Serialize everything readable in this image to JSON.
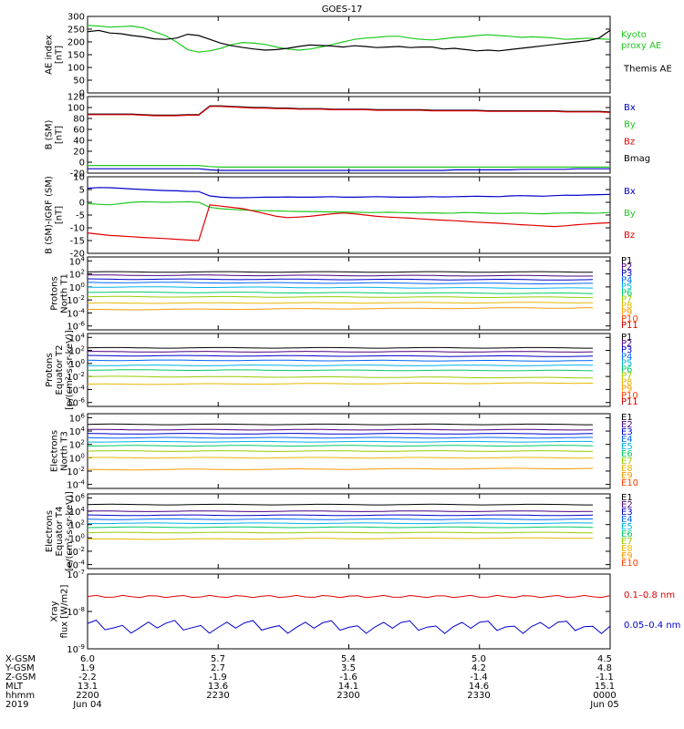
{
  "title": "GOES-17",
  "colors": {
    "black": "#000000",
    "red": "#e00000",
    "green": "#1fc81f",
    "blue": "#0000cc",
    "P1": "#000000",
    "P2": "#4b0082",
    "P3": "#0000cc",
    "P4": "#0066ff",
    "P5": "#00b3e6",
    "P6": "#00cc66",
    "P7": "#99cc00",
    "P8": "#e6b800",
    "P9": "#ff9900",
    "P10": "#ff4000",
    "P11": "#cc0000"
  },
  "chart_data": [
    {
      "type": "line",
      "ylabel": "AE index [nT]",
      "ylim": [
        0,
        300
      ],
      "yticks": [
        "0",
        "50",
        "100",
        "150",
        "200",
        "250",
        "300"
      ],
      "legend": [
        {
          "label": "Kyoto proxy AE",
          "color": "#1fc81f"
        },
        {
          "label": "Themis AE",
          "color": "#000000"
        }
      ],
      "series": [
        {
          "name": "Kyoto proxy AE",
          "color": "#1fc81f",
          "values": [
            265,
            262,
            258,
            260,
            262,
            255,
            240,
            225,
            200,
            170,
            160,
            165,
            175,
            190,
            198,
            195,
            190,
            180,
            172,
            168,
            172,
            180,
            190,
            200,
            210,
            215,
            218,
            222,
            222,
            215,
            210,
            208,
            212,
            218,
            220,
            225,
            228,
            225,
            222,
            218,
            220,
            218,
            215,
            210,
            212,
            215,
            212,
            210
          ]
        },
        {
          "name": "Themis AE",
          "color": "#000000",
          "values": [
            240,
            245,
            235,
            232,
            225,
            220,
            212,
            210,
            215,
            230,
            225,
            210,
            195,
            185,
            178,
            172,
            168,
            170,
            175,
            182,
            188,
            186,
            184,
            180,
            185,
            182,
            178,
            180,
            182,
            178,
            180,
            180,
            172,
            175,
            170,
            165,
            168,
            165,
            170,
            175,
            180,
            185,
            190,
            195,
            200,
            205,
            215,
            245
          ]
        }
      ]
    },
    {
      "type": "line",
      "ylabel": "B (SM) [nT]",
      "ylim": [
        -20,
        120
      ],
      "yticks": [
        "-20",
        "0",
        "20",
        "40",
        "60",
        "80",
        "100",
        "120"
      ],
      "legend": [
        {
          "label": "Bx",
          "color": "#0000cc"
        },
        {
          "label": "By",
          "color": "#1fc81f"
        },
        {
          "label": "Bz",
          "color": "#e00000"
        },
        {
          "label": "Bmag",
          "color": "#000000"
        }
      ],
      "series": [
        {
          "name": "Bmag",
          "color": "#000000",
          "values": [
            88,
            88,
            88,
            88,
            88,
            87,
            86,
            86,
            86,
            87,
            87,
            103,
            103,
            102,
            101,
            100,
            100,
            99,
            99,
            98,
            98,
            98,
            97,
            97,
            97,
            97,
            96,
            96,
            96,
            96,
            96,
            95,
            95,
            95,
            95,
            95,
            94,
            94,
            94,
            94,
            94,
            94,
            94,
            93,
            93,
            93,
            93,
            92
          ]
        },
        {
          "name": "Bz",
          "color": "#e00000",
          "values": [
            87,
            87,
            87,
            87,
            87,
            86,
            85,
            85,
            85,
            86,
            86,
            102,
            102,
            101,
            100,
            99,
            99,
            98,
            98,
            97,
            97,
            97,
            96,
            96,
            96,
            96,
            95,
            95,
            95,
            95,
            95,
            94,
            94,
            94,
            94,
            94,
            93,
            93,
            93,
            93,
            93,
            93,
            93,
            92,
            92,
            92,
            92,
            91
          ]
        },
        {
          "name": "By",
          "color": "#1fc81f",
          "values": [
            -6,
            -6,
            -6,
            -6,
            -6,
            -6,
            -6,
            -6,
            -6,
            -6,
            -6,
            -8,
            -9,
            -9,
            -9,
            -9,
            -9,
            -9,
            -9,
            -9,
            -9,
            -9,
            -9,
            -9,
            -9,
            -9,
            -9,
            -9,
            -9,
            -9,
            -9,
            -9,
            -9,
            -9,
            -9,
            -9,
            -9,
            -9,
            -9,
            -9,
            -9,
            -9,
            -9,
            -9,
            -9,
            -9,
            -9,
            -9
          ]
        },
        {
          "name": "Bx",
          "color": "#0000cc",
          "values": [
            -12,
            -12,
            -12,
            -12,
            -12,
            -12,
            -12,
            -12,
            -12,
            -12,
            -12,
            -14,
            -15,
            -15,
            -15,
            -15,
            -15,
            -15,
            -15,
            -15,
            -15,
            -15,
            -15,
            -15,
            -15,
            -15,
            -15,
            -15,
            -15,
            -15,
            -15,
            -15,
            -15,
            -14,
            -14,
            -14,
            -14,
            -14,
            -14,
            -13,
            -13,
            -13,
            -13,
            -13,
            -12,
            -12,
            -12,
            -12
          ]
        }
      ]
    },
    {
      "type": "line",
      "ylabel": "B (SM)-IGRF (SM) [nT]",
      "ylim": [
        -20,
        10
      ],
      "yticks": [
        "-20",
        "-15",
        "-10",
        "-5",
        "0",
        "5",
        "10"
      ],
      "legend": [
        {
          "label": "Bx",
          "color": "#0000cc"
        },
        {
          "label": "By",
          "color": "#1fc81f"
        },
        {
          "label": "Bz",
          "color": "#e00000"
        }
      ],
      "series": [
        {
          "name": "Bx",
          "color": "#0000cc",
          "values": [
            5.5,
            5.8,
            5.7,
            5.5,
            5.2,
            5.0,
            4.8,
            4.6,
            4.5,
            4.3,
            4.2,
            2.5,
            2.0,
            1.8,
            1.8,
            1.9,
            2.0,
            2.0,
            2.1,
            2.0,
            2.0,
            2.1,
            2.2,
            2.0,
            2.0,
            2.1,
            2.2,
            2.1,
            2.0,
            2.0,
            2.1,
            2.2,
            2.1,
            2.2,
            2.3,
            2.4,
            2.3,
            2.2,
            2.5,
            2.6,
            2.5,
            2.4,
            2.6,
            2.8,
            2.7,
            2.9,
            3.0,
            3.1
          ]
        },
        {
          "name": "By",
          "color": "#1fc81f",
          "values": [
            -0.5,
            -0.8,
            -1.0,
            -0.5,
            0.0,
            0.2,
            0.1,
            0.0,
            0.1,
            0.2,
            0.0,
            -2.0,
            -2.5,
            -2.8,
            -3.0,
            -3.2,
            -3.3,
            -3.4,
            -3.5,
            -3.6,
            -3.6,
            -3.7,
            -3.8,
            -3.8,
            -3.9,
            -4.0,
            -4.0,
            -3.9,
            -4.0,
            -4.1,
            -4.2,
            -4.1,
            -4.3,
            -4.2,
            -4.0,
            -4.1,
            -4.3,
            -4.4,
            -4.3,
            -4.2,
            -4.4,
            -4.5,
            -4.3,
            -4.2,
            -4.1,
            -4.3,
            -4.2,
            -4.0
          ]
        },
        {
          "name": "Bz",
          "color": "#e00000",
          "values": [
            -12.0,
            -12.5,
            -13.0,
            -13.2,
            -13.5,
            -13.8,
            -14.0,
            -14.2,
            -14.5,
            -14.8,
            -15.0,
            -1.0,
            -1.5,
            -2.0,
            -2.5,
            -3.5,
            -4.5,
            -5.5,
            -6.0,
            -5.8,
            -5.5,
            -5.0,
            -4.5,
            -4.2,
            -4.5,
            -5.0,
            -5.5,
            -5.8,
            -6.0,
            -6.2,
            -6.5,
            -6.8,
            -7.0,
            -7.2,
            -7.5,
            -7.8,
            -8.0,
            -8.2,
            -8.5,
            -8.8,
            -9.0,
            -9.3,
            -9.5,
            -9.2,
            -8.8,
            -8.5,
            -8.2,
            -8.0
          ]
        }
      ]
    },
    {
      "type": "line",
      "log": true,
      "ylabel": "Protons North T1",
      "ytick_exponents": [
        4,
        2,
        0,
        -2,
        -4,
        -6
      ],
      "legend": [
        "P1",
        "P2",
        "P3",
        "P4",
        "P5",
        "P6",
        "P7",
        "P8",
        "P9",
        "P10",
        "P11"
      ],
      "series_log10": [
        {
          "name": "P1",
          "start": 2.3,
          "end": 2.3
        },
        {
          "name": "P2",
          "start": 1.8,
          "end": 1.7
        },
        {
          "name": "P3",
          "start": 1.2,
          "end": 1.1
        },
        {
          "name": "P4",
          "start": 0.7,
          "end": 0.5
        },
        {
          "name": "P5",
          "start": 0.0,
          "end": -0.2
        },
        {
          "name": "P6",
          "start": -0.8,
          "end": -1.0
        },
        {
          "name": "P7",
          "start": -1.5,
          "end": -1.6
        },
        {
          "name": "P8",
          "start": -2.5,
          "end": -2.4
        },
        {
          "name": "P9",
          "start": -3.5,
          "end": -3.2
        }
      ]
    },
    {
      "type": "line",
      "log": true,
      "ylabel": "Protons Equator T2",
      "units": "[p/(cm²-s-sr-keV)]",
      "ytick_exponents": [
        4,
        2,
        0,
        -2,
        -4,
        -6
      ],
      "legend": [
        "P1",
        "P2",
        "P3",
        "P4",
        "P5",
        "P6",
        "P7",
        "P8",
        "P9",
        "P10",
        "P11"
      ],
      "series_log10": [
        {
          "name": "P1",
          "start": 2.4,
          "end": 2.4
        },
        {
          "name": "P2",
          "start": 1.8,
          "end": 1.8
        },
        {
          "name": "P3",
          "start": 1.2,
          "end": 1.1
        },
        {
          "name": "P4",
          "start": 0.5,
          "end": 0.4
        },
        {
          "name": "P5",
          "start": -0.3,
          "end": -0.3
        },
        {
          "name": "P6",
          "start": -1.0,
          "end": -1.1
        },
        {
          "name": "P7",
          "start": -2.0,
          "end": -2.2
        },
        {
          "name": "P8",
          "start": -3.2,
          "end": -3.0
        }
      ]
    },
    {
      "type": "line",
      "log": true,
      "ylabel": "Electrons North T3",
      "ytick_exponents": [
        6,
        4,
        2,
        0,
        -2,
        -4
      ],
      "legend": [
        "E1",
        "E2",
        "E3",
        "E4",
        "E5",
        "E6",
        "E7",
        "E8",
        "E9",
        "E10"
      ],
      "series_log10": [
        {
          "name": "E1",
          "start": 5.0,
          "end": 5.0
        },
        {
          "name": "E2",
          "start": 4.2,
          "end": 4.2
        },
        {
          "name": "E3",
          "start": 3.6,
          "end": 3.6
        },
        {
          "name": "E4",
          "start": 3.0,
          "end": 3.0
        },
        {
          "name": "E5",
          "start": 2.4,
          "end": 2.4
        },
        {
          "name": "E6",
          "start": 1.8,
          "end": 1.8
        },
        {
          "name": "E7",
          "start": 1.0,
          "end": 1.0
        },
        {
          "name": "E8",
          "start": 0.0,
          "end": 0.0
        },
        {
          "name": "E9",
          "start": -1.8,
          "end": -1.6
        }
      ]
    },
    {
      "type": "line",
      "log": true,
      "ylabel": "Electrons Equator T4",
      "units": "[e/(cm²-s-sr-keV)]",
      "ytick_exponents": [
        6,
        4,
        2,
        0,
        -2,
        -4
      ],
      "legend": [
        "E1",
        "E2",
        "E3",
        "E4",
        "E5",
        "E6",
        "E7",
        "E8",
        "E9",
        "E10"
      ],
      "series_log10": [
        {
          "name": "E1",
          "start": 5.0,
          "end": 5.0
        },
        {
          "name": "E2",
          "start": 4.0,
          "end": 4.0
        },
        {
          "name": "E3",
          "start": 3.4,
          "end": 3.4
        },
        {
          "name": "E4",
          "start": 2.8,
          "end": 2.8
        },
        {
          "name": "E5",
          "start": 2.2,
          "end": 2.2
        },
        {
          "name": "E6",
          "start": 1.6,
          "end": 1.6
        },
        {
          "name": "E7",
          "start": 0.8,
          "end": 0.8
        },
        {
          "name": "E8",
          "start": -0.2,
          "end": 0.0
        }
      ]
    },
    {
      "type": "line",
      "log": true,
      "ylabel": "Xray flux [W/m2]",
      "ytick_exponents": [
        -7,
        -8,
        -9
      ],
      "legend": [
        {
          "label": "0.1–0.8 nm",
          "color": "#e00000"
        },
        {
          "label": "0.05–0.4 nm",
          "color": "#0000cc"
        }
      ],
      "series_log10": [
        {
          "name": "0.1–0.8 nm",
          "color": "#e00000",
          "level": -7.6
        },
        {
          "name": "0.05–0.4 nm",
          "color": "#0000cc",
          "level": -8.4
        }
      ]
    }
  ],
  "footer": {
    "row_labels": [
      "X-GSM",
      "Y-GSM",
      "Z-GSM",
      "MLT",
      "hhmm",
      "2019"
    ],
    "columns": [
      [
        "6.0",
        "1.9",
        "-2.2",
        "13.1",
        "2200",
        "Jun 04"
      ],
      [
        "5.7",
        "2.7",
        "-1.9",
        "13.6",
        "2230",
        ""
      ],
      [
        "5.4",
        "3.5",
        "-1.6",
        "14.1",
        "2300",
        ""
      ],
      [
        "5.0",
        "4.2",
        "-1.4",
        "14.6",
        "2330",
        ""
      ],
      [
        "4.5",
        "4.8",
        "-1.1",
        "15.1",
        "0000",
        "Jun 05"
      ]
    ]
  }
}
